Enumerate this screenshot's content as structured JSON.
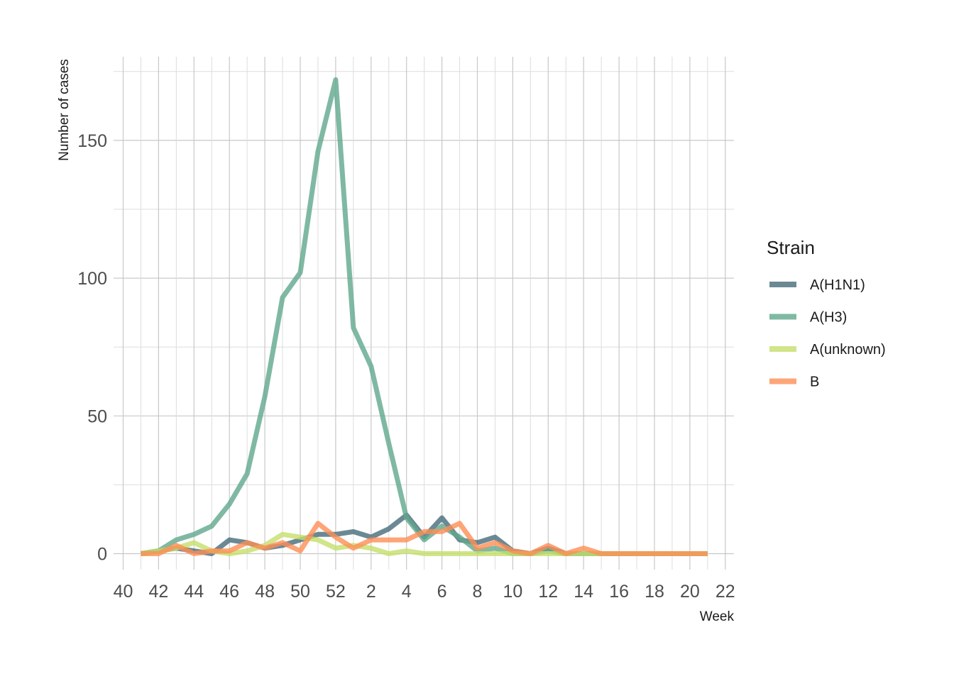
{
  "chart_data": {
    "type": "line",
    "xlabel": "Week",
    "ylabel": "Number of cases",
    "ylim": [
      -8,
      172
    ],
    "grid": true,
    "legend": {
      "title": "Strain",
      "placement": "right"
    },
    "x_ticks": [
      "40",
      "42",
      "44",
      "46",
      "48",
      "50",
      "52",
      "2",
      "4",
      "6",
      "8",
      "10",
      "12",
      "14",
      "16",
      "18",
      "20",
      "22"
    ],
    "y_ticks": [
      "0",
      "50",
      "100",
      "150"
    ],
    "x": [
      "41",
      "42",
      "43",
      "44",
      "45",
      "46",
      "47",
      "48",
      "49",
      "50",
      "51",
      "52",
      "1",
      "2",
      "3",
      "4",
      "5",
      "6",
      "7",
      "8",
      "9",
      "10",
      "11",
      "12",
      "13",
      "14",
      "15",
      "16",
      "17",
      "18",
      "19",
      "20",
      "21"
    ],
    "series": [
      {
        "name": "A(H1N1)",
        "color": "#466b79",
        "values": [
          0,
          1,
          2,
          1,
          0,
          5,
          4,
          2,
          3,
          5,
          7,
          7,
          8,
          6,
          9,
          14,
          6,
          13,
          5,
          4,
          6,
          1,
          0,
          2,
          0,
          0,
          0,
          0,
          0,
          0,
          0,
          0,
          0
        ]
      },
      {
        "name": "A(H3)",
        "color": "#5fa88c",
        "values": [
          0,
          1,
          5,
          7,
          10,
          18,
          29,
          57,
          93,
          102,
          146,
          172,
          82,
          68,
          40,
          13,
          5,
          10,
          6,
          1,
          2,
          0,
          0,
          1,
          0,
          0,
          0,
          0,
          0,
          0,
          0,
          0,
          0
        ]
      },
      {
        "name": "A(unknown)",
        "color": "#c5df6b",
        "values": [
          0,
          1,
          2,
          4,
          1,
          0,
          1,
          3,
          7,
          6,
          5,
          2,
          3,
          2,
          0,
          1,
          0,
          0,
          0,
          0,
          0,
          0,
          0,
          0,
          0,
          0,
          0,
          0,
          0,
          0,
          0,
          0,
          0
        ]
      },
      {
        "name": "B",
        "color": "#fe8e55",
        "values": [
          0,
          0,
          3,
          0,
          1,
          1,
          4,
          2,
          4,
          1,
          11,
          6,
          2,
          5,
          5,
          5,
          8,
          8,
          11,
          2,
          4,
          1,
          0,
          3,
          0,
          2,
          0,
          0,
          0,
          0,
          0,
          0,
          0
        ]
      }
    ]
  }
}
